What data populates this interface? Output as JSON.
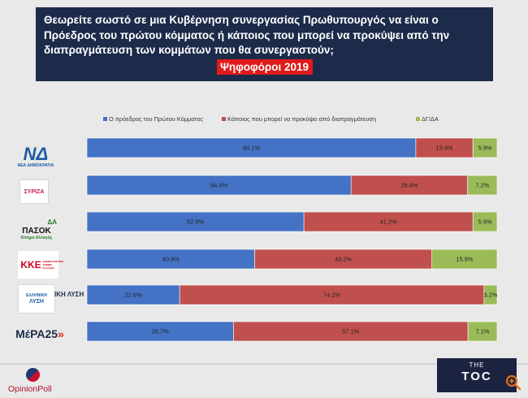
{
  "header": {
    "question_lines": [
      "Θεωρείτε σωστό σε μια Κυβέρνηση συνεργασίας Πρωθυπουργός να είναι ο",
      "Πρόεδρος του πρώτου κόμματος ή κάποιος που μπορεί να προκύψει από την",
      "διαπραγμάτευση των κομμάτων που θα συνεργαστούν;"
    ],
    "subtitle": "Ψηφοφόροι 2019"
  },
  "chart_data": {
    "type": "bar",
    "orientation": "horizontal",
    "stacked": true,
    "normalized": true,
    "title": "Θεωρείτε σωστό σε μια Κυβέρνηση συνεργασίας Πρωθυπουργός να είναι ο Πρόεδρος του πρώτου κόμματος ή κάποιος που μπορεί να προκύψει από την διαπραγμάτευση των κομμάτων που θα συνεργαστούν;",
    "subtitle": "Ψηφοφόροι 2019",
    "legend_position": "top",
    "categories": [
      "Νέα Δημοκρατία",
      "ΣΥΡΙΖΑ",
      "ΠΑΣΟΚ",
      "ΚΚΕ",
      "Ελληνική Λύση",
      "ΜέΡΑ25"
    ],
    "series": [
      {
        "name": "Ο πρόεδρος του Πρώτου Κόμματος",
        "color": "#4472c4",
        "values": [
          80.1,
          64.4,
          52.9,
          40.9,
          22.6,
          35.7
        ],
        "labels": [
          "80.1%",
          "64.4%",
          "52.9%",
          "40.9%",
          "22.6%",
          "35.7%"
        ]
      },
      {
        "name": "Κάποιος που μπορεί να προκύψει από διαπραγμάτευση",
        "color": "#c0504d",
        "values": [
          13.9,
          28.4,
          41.2,
          43.2,
          74.2,
          57.1
        ],
        "labels": [
          "13.9%",
          "28.4%",
          "41.2%",
          "43.2%",
          "74.2%",
          "57.1%"
        ]
      },
      {
        "name": "ΔΓ/ΔΑ",
        "color": "#9bbb59",
        "values": [
          5.9,
          7.2,
          5.9,
          15.9,
          3.2,
          7.1
        ],
        "labels": [
          "5.9%",
          "7.2%",
          "5.9%",
          "15.9%",
          "3.2%",
          "7.1%"
        ]
      }
    ]
  },
  "logos": {
    "nd_mark": "ΝΔ",
    "nd_caption": "ΝΕΑ ΔΗΜΟΚΡΑΤΙΑ",
    "syriza": "ΣΥΡΙΖΑ",
    "pasok_mark": "ΔΑ",
    "pasok_name": "ΠΑΣΟΚ",
    "pasok_caption": "Κίνημα Αλλαγής",
    "kke": "ΚΚΕ",
    "kke_side": "ΚΟΜΜΟΥΝΙΣΤΙΚΟ ΚΟΜΜΑ ΕΛΛΑΔΑΣ",
    "el_lysi_top": "ΕΛΛΗΝΙΚΗ",
    "el_lysi_bottom": "ΛΥΣΗ",
    "el_lysi_overlap": "ΙΚΗ ΛΥΣΗ",
    "mera25": "ΜέΡΑ25"
  },
  "footer": {
    "brand": "OpinionPoll",
    "toc_top": "THE",
    "toc_main": "TOC"
  },
  "icons": [
    "opinionpoll-logo-icon",
    "zoom-in-icon"
  ]
}
